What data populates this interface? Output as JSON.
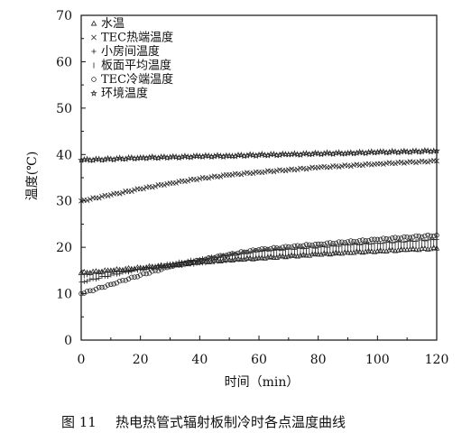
{
  "chart_data": {
    "type": "scatter",
    "xlabel": "时间（min）",
    "ylabel": "温度(℃)",
    "xlim": [
      0,
      120
    ],
    "ylim": [
      0,
      70
    ],
    "xticks": [
      0,
      20,
      40,
      60,
      80,
      100,
      120
    ],
    "yticks": [
      0,
      10,
      20,
      30,
      40,
      50,
      60,
      70
    ],
    "grid": false,
    "legend_position": "top-left",
    "series": [
      {
        "name": "水温",
        "marker": "triangle",
        "x": [
          0,
          10,
          20,
          30,
          40,
          50,
          60,
          70,
          80,
          90,
          100,
          110,
          120
        ],
        "y": [
          14.5,
          15.0,
          15.6,
          16.2,
          16.8,
          17.3,
          17.7,
          18.1,
          18.5,
          18.9,
          19.2,
          19.5,
          19.8
        ]
      },
      {
        "name": "TEC热端温度",
        "marker": "cross",
        "x": [
          0,
          10,
          20,
          30,
          40,
          50,
          60,
          70,
          80,
          90,
          100,
          110,
          120
        ],
        "y": [
          30.0,
          31.3,
          32.6,
          33.8,
          34.8,
          35.6,
          36.2,
          36.7,
          37.2,
          37.6,
          38.0,
          38.3,
          38.6
        ]
      },
      {
        "name": "小房间温度",
        "marker": "plus",
        "x": [
          0,
          10,
          20,
          30,
          40,
          50,
          60,
          70,
          80,
          90,
          100,
          110,
          120
        ],
        "y": [
          12.5,
          14.0,
          15.3,
          16.4,
          17.4,
          18.3,
          19.2,
          19.6,
          20.0,
          20.5,
          20.9,
          21.3,
          21.7
        ]
      },
      {
        "name": "板面平均温度",
        "marker": "bar",
        "x": [
          0,
          10,
          20,
          30,
          40,
          50,
          60,
          70,
          80,
          90,
          100,
          110,
          120
        ],
        "y": [
          14.0,
          14.6,
          15.3,
          16.0,
          16.7,
          17.4,
          18.0,
          18.5,
          19.0,
          19.5,
          19.9,
          20.3,
          20.7
        ]
      },
      {
        "name": "TEC冷端温度",
        "marker": "circle",
        "x": [
          0,
          10,
          20,
          30,
          40,
          50,
          60,
          70,
          80,
          90,
          100,
          110,
          120
        ],
        "y": [
          10.0,
          12.0,
          14.0,
          15.8,
          17.2,
          18.5,
          19.5,
          20.1,
          20.7,
          21.2,
          21.7,
          22.2,
          22.6
        ]
      },
      {
        "name": "环境温度",
        "marker": "star",
        "x": [
          0,
          10,
          20,
          30,
          40,
          50,
          60,
          70,
          80,
          90,
          100,
          110,
          120
        ],
        "y": [
          38.8,
          39.0,
          39.3,
          39.4,
          39.6,
          39.7,
          39.9,
          40.0,
          40.2,
          40.3,
          40.5,
          40.6,
          40.8
        ]
      }
    ]
  },
  "caption": {
    "number": "图 11",
    "text": "热电热管式辐射板制冷时各点温度曲线"
  }
}
